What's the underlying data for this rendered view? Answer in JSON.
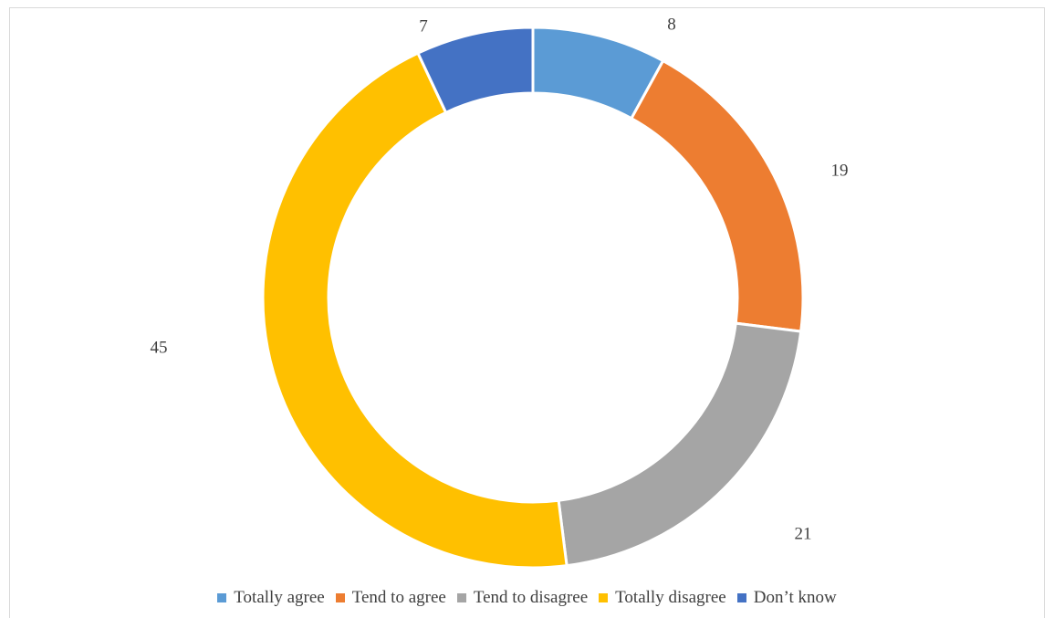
{
  "chart_data": {
    "type": "donut",
    "categories": [
      "Totally agree",
      "Tend to agree",
      "Tend to disagree",
      "Totally disagree",
      "Don’t know"
    ],
    "values": [
      8,
      19,
      21,
      45,
      7
    ],
    "colors": [
      "#5B9BD5",
      "#ED7D31",
      "#A5A5A5",
      "#FFC000",
      "#4472C4"
    ],
    "legend_position": "bottom",
    "start_angle": "top, clockwise",
    "title": ""
  }
}
